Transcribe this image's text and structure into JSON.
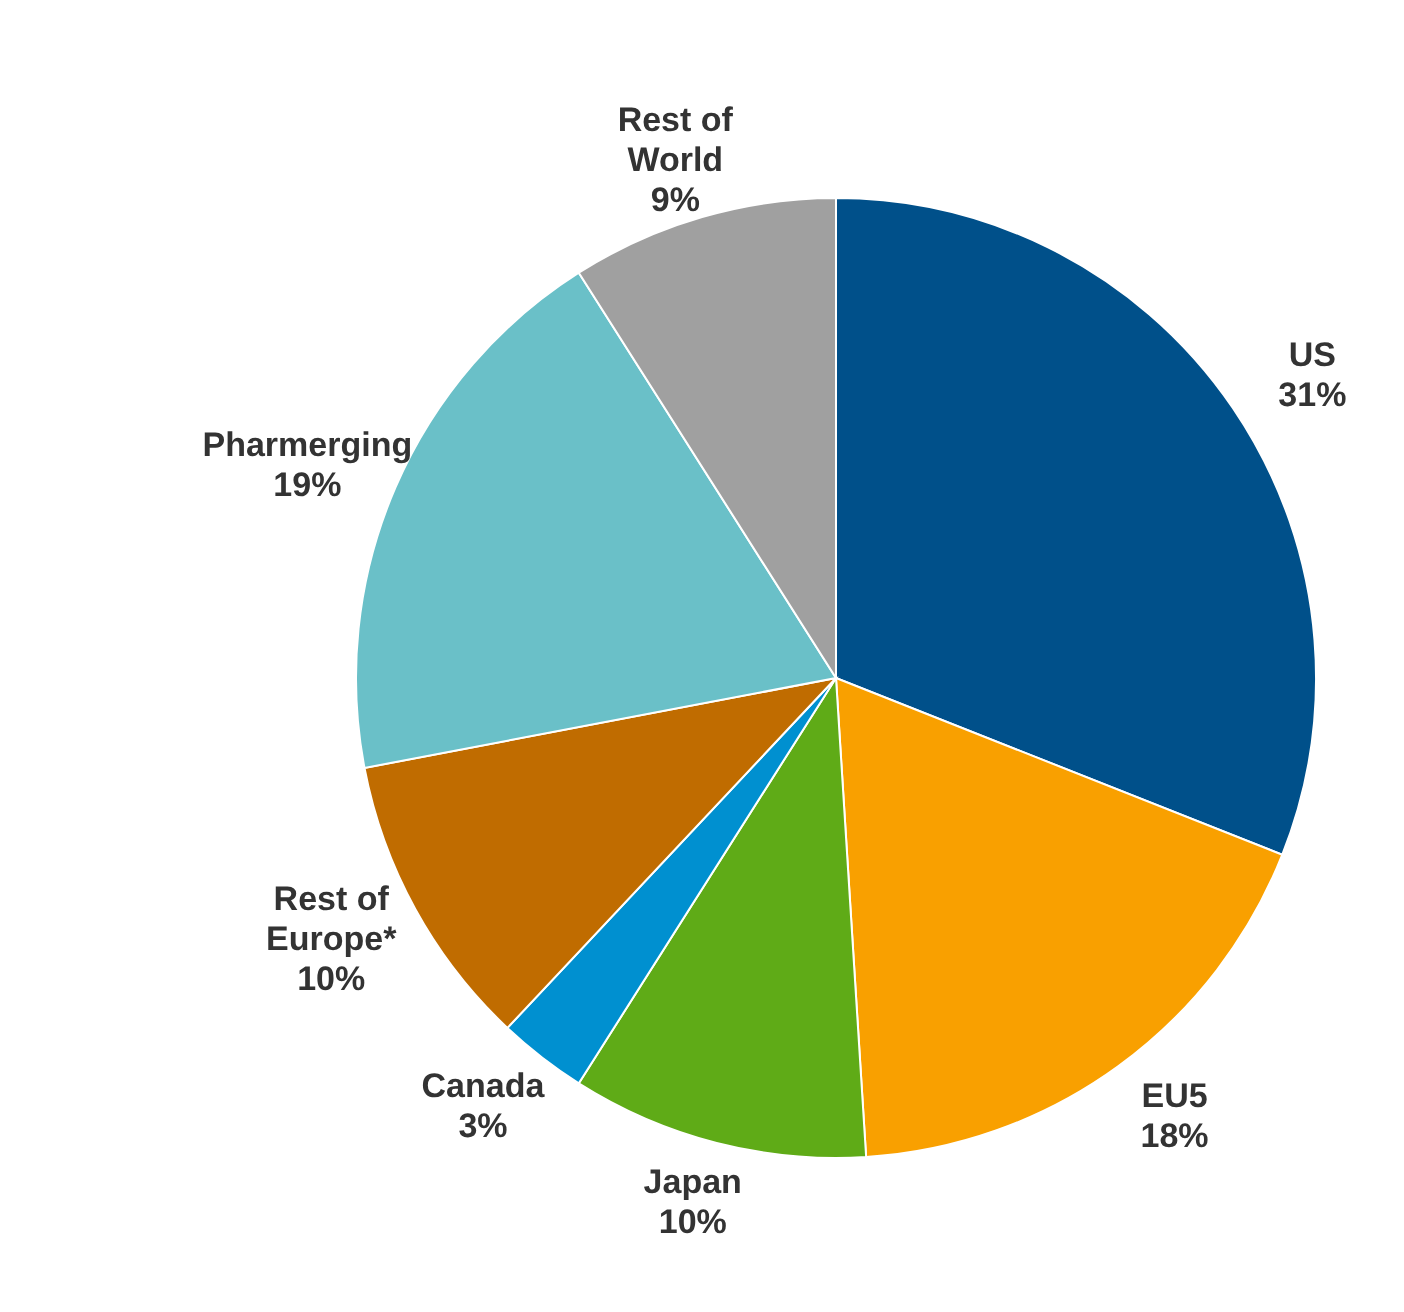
{
  "chart_data": {
    "type": "pie",
    "categories": [
      "US",
      "EU5",
      "Japan",
      "Canada",
      "Rest of Europe*",
      "Pharmerging",
      "Rest of World"
    ],
    "values": [
      31,
      18,
      10,
      3,
      10,
      19,
      9
    ],
    "colors": [
      "#00508a",
      "#f9a000",
      "#5fab17",
      "#0090d0",
      "#c06c00",
      "#6ac0c8",
      "#a0a0a0"
    ],
    "value_labels": [
      "31%",
      "18%",
      "10%",
      "3%",
      "10%",
      "19%",
      "9%"
    ],
    "legend": false
  }
}
